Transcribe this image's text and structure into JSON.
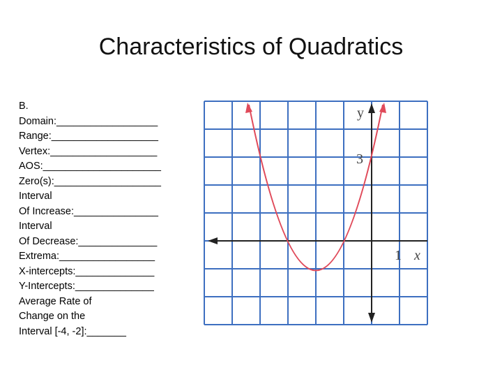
{
  "header": {
    "title": "Characteristics of Quadratics"
  },
  "worksheet": {
    "lines": [
      "B.",
      "Domain:__________________",
      "Range:___________________",
      "Vertex:___________________",
      "AOS:_____________________",
      "Zero(s):___________________",
      "Interval",
      "Of Increase:_______________",
      "Interval",
      "Of Decrease:______________",
      "Extrema:_________________",
      "X-intercepts:______________",
      "Y-Intercepts:______________",
      "Average Rate of",
      "Change on the",
      "Interval [-4, -2]:_______"
    ]
  },
  "graph": {
    "y_axis_label": "y",
    "y_tick_label": "3",
    "x_tick_label": "1",
    "x_axis_label": "x"
  }
}
